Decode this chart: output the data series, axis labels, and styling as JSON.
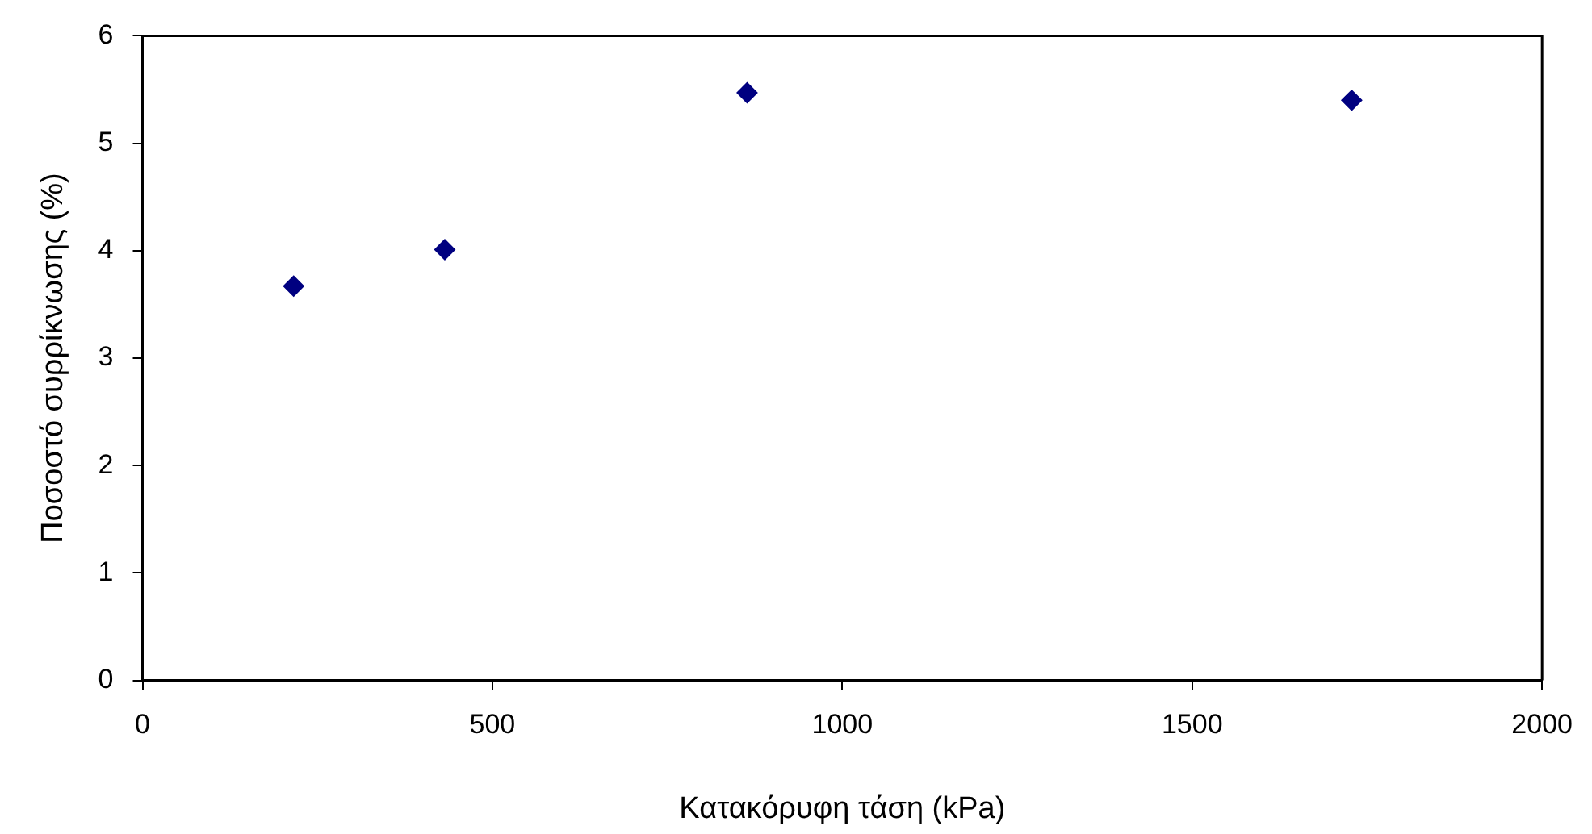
{
  "chart_data": {
    "type": "scatter",
    "xlabel": "Κατακόρυφη τάση (kPa)",
    "ylabel": "Ποσοστό συρρίκνωσης (%)",
    "x": [
      216,
      432,
      864,
      1728
    ],
    "series": [
      {
        "color": "#000080",
        "values": [
          3.67,
          4.01,
          5.47,
          5.4
        ]
      }
    ],
    "xlim": [
      0,
      2000
    ],
    "xticks": [
      0,
      500,
      1000,
      1500,
      2000
    ],
    "ylim": [
      0,
      6
    ],
    "yticks": [
      0,
      1,
      2,
      3,
      4,
      5,
      6
    ],
    "grid": false,
    "legend": false,
    "marker": "diamond"
  }
}
